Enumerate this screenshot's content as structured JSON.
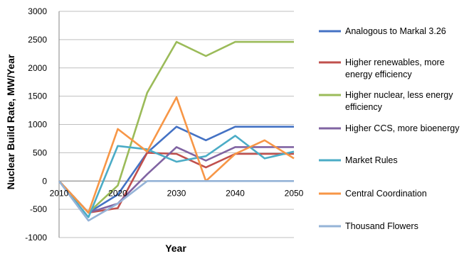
{
  "chart_data": {
    "type": "line",
    "xlabel": "Year",
    "ylabel": "Nuclear Build Rate, MW/Year",
    "xlim": [
      2010,
      2050
    ],
    "ylim": [
      -1000,
      3000
    ],
    "x_ticks": [
      2010,
      2020,
      2030,
      2040,
      2050
    ],
    "y_ticks": [
      -1000,
      -500,
      0,
      500,
      1000,
      1500,
      2000,
      2500,
      3000
    ],
    "grid": "horizontal",
    "legend_position": "right",
    "x": [
      2010,
      2015,
      2020,
      2025,
      2030,
      2035,
      2040,
      2045,
      2050
    ],
    "series": [
      {
        "name": "Analogous to Markal 3.26",
        "color": "#4472C4",
        "legend_lines": [
          "Analogous to Markal 3.26"
        ],
        "values": [
          0,
          -560,
          -240,
          500,
          960,
          720,
          960,
          960,
          960
        ]
      },
      {
        "name": "Higher renewables, more energy efficiency",
        "color": "#C0504D",
        "legend_lines": [
          "Higher renewables, more",
          "energy efficiency"
        ],
        "values": [
          0,
          -560,
          -480,
          500,
          480,
          240,
          480,
          480,
          480
        ]
      },
      {
        "name": "Higher nuclear, less energy efficiency",
        "color": "#9BBB59",
        "legend_lines": [
          "Higher nuclear, less energy",
          "efficiency"
        ],
        "values": [
          0,
          -560,
          -80,
          1560,
          2460,
          2210,
          2460,
          2460,
          2460
        ]
      },
      {
        "name": "Higher CCS, more bioenergy",
        "color": "#8064A2",
        "legend_lines": [
          "Higher CCS, more bioenergy"
        ],
        "values": [
          0,
          -560,
          -400,
          120,
          600,
          360,
          600,
          600,
          600
        ]
      },
      {
        "name": "Market Rules",
        "color": "#4BACC6",
        "legend_lines": [
          "Market Rules"
        ],
        "values": [
          0,
          -640,
          620,
          560,
          340,
          440,
          800,
          400,
          520
        ]
      },
      {
        "name": "Central Coordination",
        "color": "#F79646",
        "legend_lines": [
          "Central Coordination"
        ],
        "values": [
          0,
          -560,
          920,
          520,
          1480,
          0,
          480,
          720,
          400
        ]
      },
      {
        "name": "Thousand Flowers",
        "color": "#95B3D7",
        "legend_lines": [
          "Thousand Flowers"
        ],
        "values": [
          0,
          -700,
          -400,
          0,
          0,
          0,
          0,
          0,
          0
        ]
      }
    ]
  }
}
